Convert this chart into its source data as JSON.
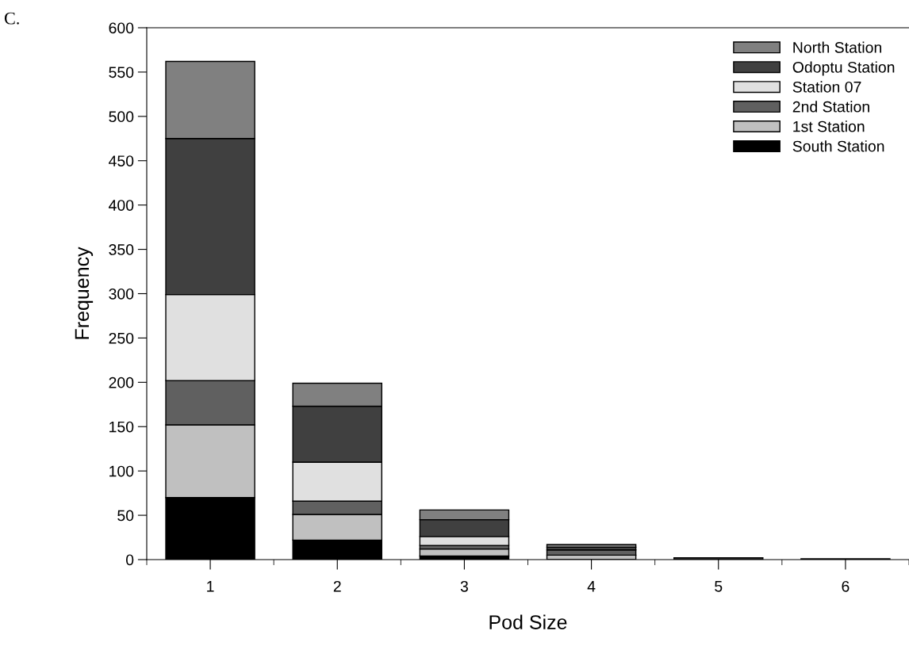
{
  "chart_data": {
    "type": "bar",
    "stacked": true,
    "xlabel": "Pod Size",
    "ylabel": "Frequency",
    "annotations": [
      "C."
    ],
    "categories": [
      "1",
      "2",
      "3",
      "4",
      "5",
      "6"
    ],
    "series": [
      {
        "name": "South Station",
        "color": "#000000",
        "values": [
          70,
          22,
          4,
          null,
          null,
          null
        ]
      },
      {
        "name": "1st Station",
        "color": "#c0c0c0",
        "values": [
          82,
          29,
          8,
          5,
          null,
          null
        ]
      },
      {
        "name": "2nd Station",
        "color": "#606060",
        "values": [
          50,
          15,
          4,
          6,
          null,
          null
        ]
      },
      {
        "name": "Station 07",
        "color": "#e0e0e0",
        "values": [
          97,
          44,
          10,
          null,
          null,
          null
        ]
      },
      {
        "name": "Odoptu Station",
        "color": "#404040",
        "values": [
          176,
          63,
          19,
          3,
          2,
          1
        ]
      },
      {
        "name": "North Station",
        "color": "#808080",
        "values": [
          87,
          26,
          11,
          3,
          null,
          null
        ]
      }
    ],
    "ylim": [
      0,
      600
    ],
    "yticks": [
      0,
      50,
      100,
      150,
      200,
      250,
      300,
      350,
      400,
      450,
      500,
      550,
      600
    ],
    "grid": false,
    "legend": "top right"
  }
}
